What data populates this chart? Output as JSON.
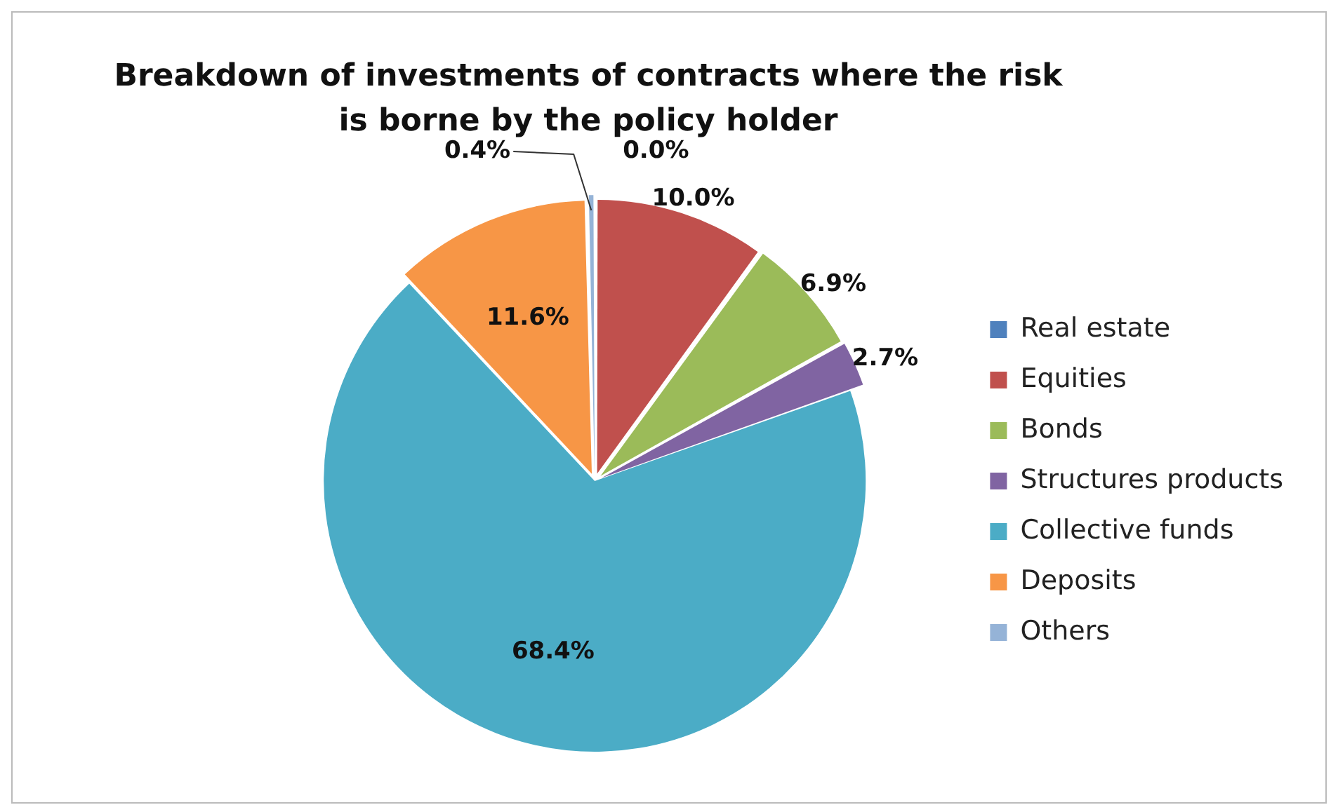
{
  "chart_data": {
    "type": "pie",
    "title": "Breakdown of investments of contracts where the risk is borne by the policy holder",
    "categories": [
      "Real estate",
      "Equities",
      "Bonds",
      "Structures products",
      "Collective funds",
      "Deposits",
      "Others"
    ],
    "values": [
      0.0,
      10.0,
      6.9,
      2.7,
      68.4,
      11.6,
      0.4
    ],
    "colors": [
      "#4f81bd",
      "#c0504d",
      "#9bbb59",
      "#8064a2",
      "#4bacc6",
      "#f79646",
      "#95b3d7"
    ],
    "value_labels": [
      "0.0%",
      "10.0%",
      "6.9%",
      "2.7%",
      "68.4%",
      "11.6%",
      "0.4%"
    ],
    "legend": "right"
  }
}
